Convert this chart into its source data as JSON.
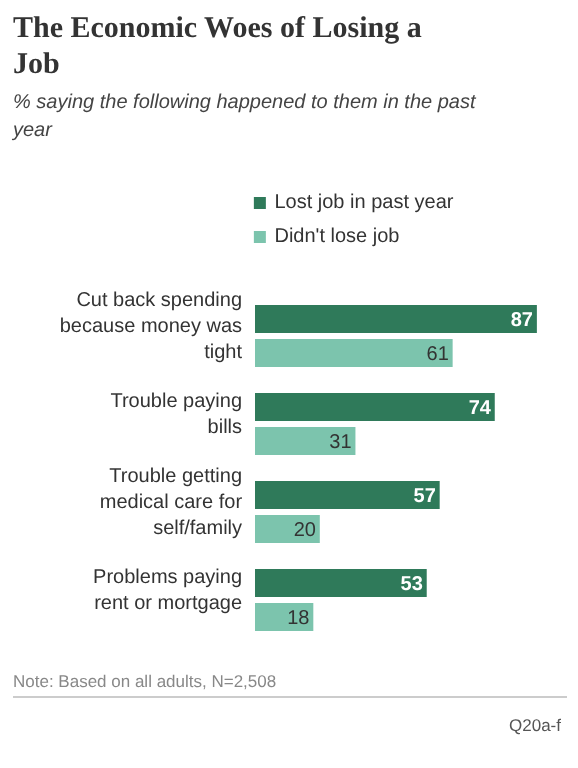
{
  "chart_data": {
    "type": "bar",
    "orientation": "horizontal",
    "title": "The Economic Woes of Losing a Job",
    "subtitle": "% saying the following happened to them in the past year",
    "categories": [
      "Cut back spending because money was tight",
      "Trouble paying bills",
      "Trouble getting medical care for self/family",
      "Problems paying rent or mortgage"
    ],
    "series": [
      {
        "name": "Lost job in past year",
        "color": "#2f7a5a",
        "values": [
          87,
          74,
          57,
          53
        ]
      },
      {
        "name": "Didn't lose job",
        "color": "#7cc4ad",
        "values": [
          61,
          31,
          20,
          18
        ]
      }
    ],
    "data_labels": true,
    "legend": "top",
    "grid": false,
    "annotations": [
      "Note: Based on all adults, N=2,508",
      "Q20a-f"
    ]
  }
}
